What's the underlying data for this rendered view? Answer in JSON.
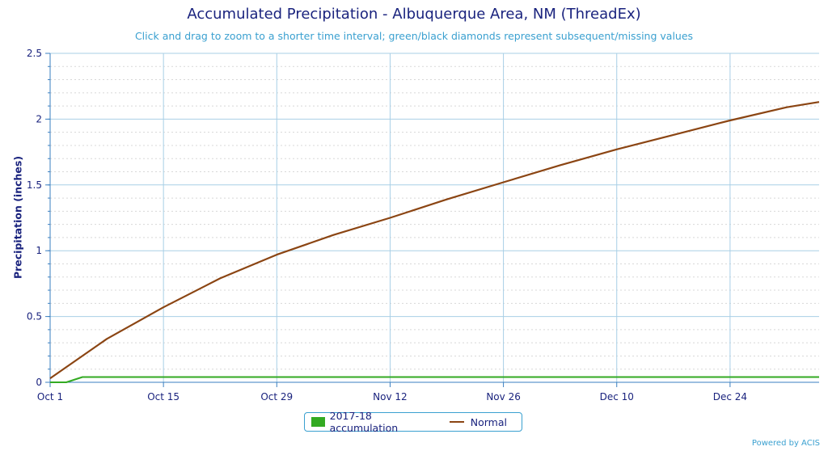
{
  "chart_data": {
    "type": "line",
    "title": "Accumulated Precipitation - Albuquerque Area, NM (ThreadEx)",
    "subtitle": "Click and drag to zoom to a shorter time interval; green/black diamonds represent subsequent/missing values",
    "ylabel": "Precipitation (inches)",
    "xlabel": "",
    "ylim": [
      0,
      2.5
    ],
    "yticks": [
      "0",
      "0.5",
      "1",
      "1.5",
      "2",
      "2.5"
    ],
    "xticks": [
      "Oct 1",
      "Oct 15",
      "Oct 29",
      "Nov 12",
      "Nov 26",
      "Dec 10",
      "Dec 24"
    ],
    "grid": true,
    "legend_position": "bottom-center",
    "series": [
      {
        "name": "2017-18 accumulation",
        "color": "#33aa22",
        "x": [
          "Oct 1",
          "Oct 3",
          "Oct 5",
          "Jan 4"
        ],
        "values": [
          0.0,
          0.0,
          0.04,
          0.04
        ]
      },
      {
        "name": "Normal",
        "color": "#8b4513",
        "x": [
          "Oct 1",
          "Oct 8",
          "Oct 15",
          "Oct 22",
          "Oct 29",
          "Nov 5",
          "Nov 12",
          "Nov 19",
          "Nov 26",
          "Dec 3",
          "Dec 10",
          "Dec 17",
          "Dec 24",
          "Dec 31",
          "Jan 4"
        ],
        "values": [
          0.03,
          0.33,
          0.57,
          0.79,
          0.97,
          1.12,
          1.25,
          1.39,
          1.52,
          1.65,
          1.77,
          1.88,
          1.99,
          2.09,
          2.13
        ]
      }
    ]
  },
  "credit": "Powered by ACIS"
}
